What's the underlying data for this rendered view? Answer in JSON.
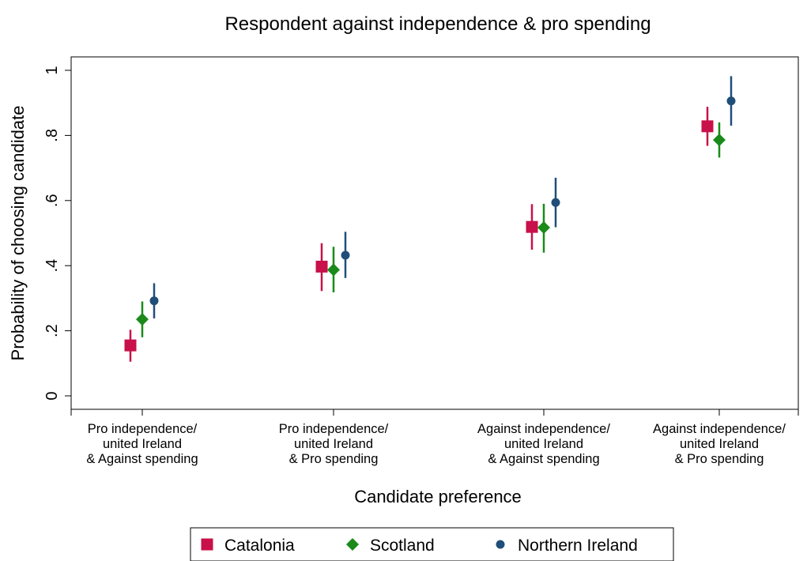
{
  "chart_data": {
    "type": "scatter",
    "title": "Respondent against independence & pro spending",
    "xlabel": "Candidate preference",
    "ylabel": "Probability of choosing candidate",
    "ylim": [
      0,
      1
    ],
    "yticks": [
      {
        "value": 0,
        "label": "0"
      },
      {
        "value": 0.2,
        "label": ".2"
      },
      {
        "value": 0.4,
        "label": ".4"
      },
      {
        "value": 0.6,
        "label": ".6"
      },
      {
        "value": 0.8,
        "label": ".8"
      },
      {
        "value": 1,
        "label": "1"
      }
    ],
    "categories": [
      [
        "Pro independence/",
        "united Ireland",
        "& Against spending"
      ],
      [
        "Pro independence/",
        "united Ireland",
        "& Pro spending"
      ],
      [
        "Against independence/",
        "united Ireland",
        "& Against spending"
      ],
      [
        "Against independence/",
        "united Ireland",
        "& Pro spending"
      ]
    ],
    "series": [
      {
        "name": "Catalonia",
        "color": "#c8104a",
        "marker": "square",
        "values": [
          0.155,
          0.397,
          0.519,
          0.828
        ],
        "ci_low": [
          0.105,
          0.322,
          0.449,
          0.768
        ],
        "ci_high": [
          0.203,
          0.469,
          0.589,
          0.888
        ]
      },
      {
        "name": "Scotland",
        "color": "#1a8a1a",
        "marker": "diamond",
        "values": [
          0.235,
          0.387,
          0.517,
          0.786
        ],
        "ci_low": [
          0.18,
          0.318,
          0.44,
          0.732
        ],
        "ci_high": [
          0.29,
          0.458,
          0.59,
          0.84
        ]
      },
      {
        "name": "Northern Ireland",
        "color": "#1f4e79",
        "marker": "circle",
        "values": [
          0.292,
          0.432,
          0.594,
          0.906
        ],
        "ci_low": [
          0.238,
          0.362,
          0.518,
          0.83
        ],
        "ci_high": [
          0.346,
          0.504,
          0.67,
          0.982
        ]
      }
    ],
    "grid": false,
    "legend": "bottom"
  }
}
